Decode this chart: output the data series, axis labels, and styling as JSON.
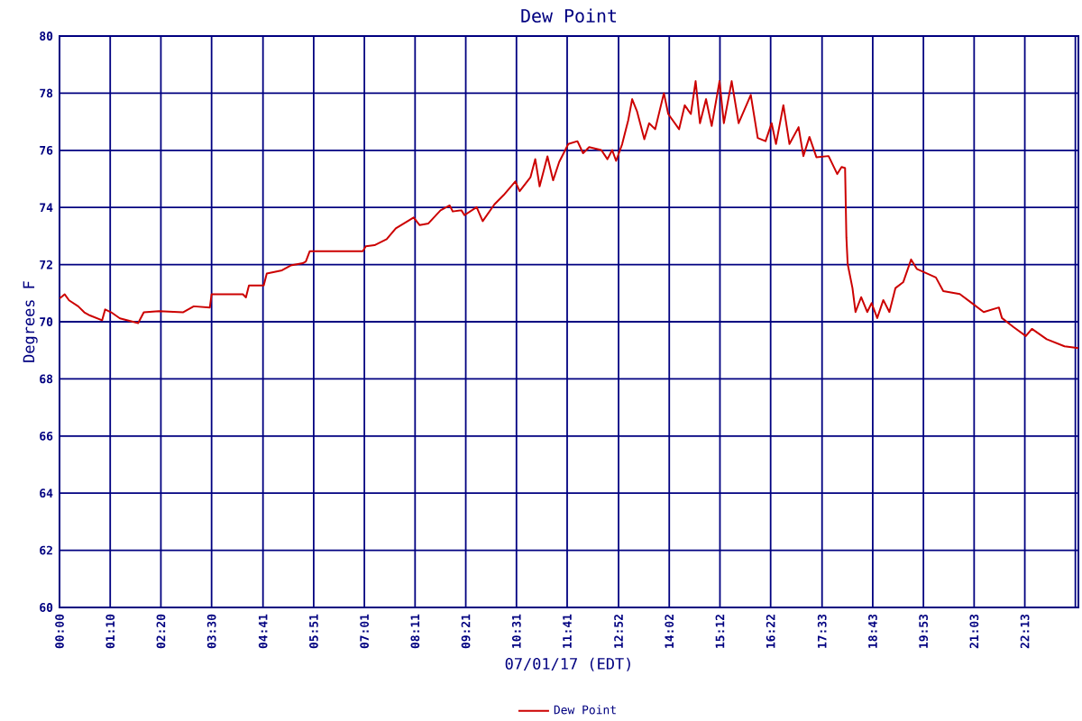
{
  "chart_data": {
    "type": "line",
    "title": "Dew Point",
    "xlabel": "07/01/17 (EDT)",
    "ylabel": "Degrees F",
    "x": [
      0,
      0.12,
      0.22,
      0.43,
      0.57,
      0.7,
      0.98,
      1.05,
      1.19,
      1.39,
      1.67,
      1.81,
      1.94,
      2.29,
      2.84,
      3.09,
      3.46,
      3.5,
      4.22,
      4.29,
      4.36,
      4.7,
      4.77,
      5.12,
      5.32,
      5.6,
      5.67,
      5.76,
      6.98,
      7.05,
      7.25,
      7.53,
      7.74,
      8.15,
      8.29,
      8.49,
      8.77,
      8.98,
      9.05,
      9.25,
      9.32,
      9.6,
      9.74,
      10.01,
      10.22,
      10.49,
      10.59,
      10.84,
      10.95,
      11.05,
      11.23,
      11.36,
      11.5,
      11.71,
      11.92,
      12.05,
      12.19,
      12.47,
      12.61,
      12.72,
      12.81,
      12.95,
      13.09,
      13.18,
      13.29,
      13.46,
      13.57,
      13.71,
      13.91,
      14.01,
      14.26,
      14.39,
      14.53,
      14.64,
      14.74,
      14.88,
      15.01,
      15.19,
      15.29,
      15.47,
      15.63,
      15.91,
      16.07,
      16.25,
      16.39,
      16.49,
      16.66,
      16.8,
      17.01,
      17.12,
      17.26,
      17.42,
      17.7,
      17.9,
      18.0,
      18.08,
      18.11,
      18.14,
      18.25,
      18.32,
      18.45,
      18.59,
      18.69,
      18.82,
      18.96,
      19.1,
      19.24,
      19.42,
      19.6,
      19.73,
      20.17,
      20.34,
      20.72,
      21.0,
      21.27,
      21.62,
      21.69,
      21.96,
      22.24,
      22.38,
      22.72,
      23.13,
      23.45
    ],
    "series": [
      {
        "name": "Dew Point",
        "color": "#cc0000",
        "values": [
          70.81,
          70.96,
          70.75,
          70.54,
          70.33,
          70.22,
          70.05,
          70.43,
          70.33,
          70.12,
          70.01,
          69.95,
          70.33,
          70.37,
          70.33,
          70.54,
          70.5,
          70.96,
          70.96,
          70.85,
          71.27,
          71.27,
          71.69,
          71.8,
          71.97,
          72.05,
          72.11,
          72.47,
          72.47,
          72.64,
          72.68,
          72.89,
          73.27,
          73.65,
          73.38,
          73.44,
          73.9,
          74.07,
          73.86,
          73.9,
          73.73,
          74.01,
          73.52,
          74.11,
          74.43,
          74.91,
          74.57,
          75.06,
          75.69,
          74.74,
          75.79,
          74.95,
          75.59,
          76.22,
          76.32,
          75.9,
          76.11,
          76.01,
          75.69,
          76.01,
          75.63,
          76.22,
          77.06,
          77.79,
          77.37,
          76.39,
          76.95,
          76.74,
          78.0,
          77.27,
          76.74,
          77.58,
          77.27,
          78.42,
          76.95,
          77.79,
          76.85,
          78.42,
          76.95,
          78.42,
          76.95,
          77.94,
          76.43,
          76.32,
          76.95,
          76.22,
          77.58,
          76.22,
          76.81,
          75.8,
          76.47,
          75.76,
          75.8,
          75.17,
          75.42,
          75.38,
          72.96,
          72.02,
          71.18,
          70.34,
          70.86,
          70.34,
          70.65,
          70.13,
          70.76,
          70.34,
          71.18,
          71.39,
          72.18,
          71.85,
          71.55,
          71.07,
          70.97,
          70.65,
          70.34,
          70.5,
          70.13,
          69.81,
          69.5,
          69.75,
          69.39,
          69.14,
          69.08
        ]
      }
    ],
    "xlim": [
      0,
      23.45
    ],
    "ylim": [
      60,
      80
    ],
    "xticks": [
      {
        "value": 0,
        "label": "00:00"
      },
      {
        "value": 1.1667,
        "label": "01:10"
      },
      {
        "value": 2.3333,
        "label": "02:20"
      },
      {
        "value": 3.5,
        "label": "03:30"
      },
      {
        "value": 4.6833,
        "label": "04:41"
      },
      {
        "value": 5.85,
        "label": "05:51"
      },
      {
        "value": 7.0167,
        "label": "07:01"
      },
      {
        "value": 8.1833,
        "label": "08:11"
      },
      {
        "value": 9.35,
        "label": "09:21"
      },
      {
        "value": 10.5167,
        "label": "10:31"
      },
      {
        "value": 11.6833,
        "label": "11:41"
      },
      {
        "value": 12.8667,
        "label": "12:52"
      },
      {
        "value": 14.0333,
        "label": "14:02"
      },
      {
        "value": 15.2,
        "label": "15:12"
      },
      {
        "value": 16.3667,
        "label": "16:22"
      },
      {
        "value": 17.55,
        "label": "17:33"
      },
      {
        "value": 18.7167,
        "label": "18:43"
      },
      {
        "value": 19.8833,
        "label": "19:53"
      },
      {
        "value": 21.05,
        "label": "21:03"
      },
      {
        "value": 22.2167,
        "label": "22:13"
      },
      {
        "value": 23.38,
        "label": null
      }
    ],
    "yticks": [
      60,
      62,
      64,
      66,
      68,
      70,
      72,
      74,
      76,
      78,
      80
    ],
    "grid": true,
    "legend": "bottom"
  }
}
